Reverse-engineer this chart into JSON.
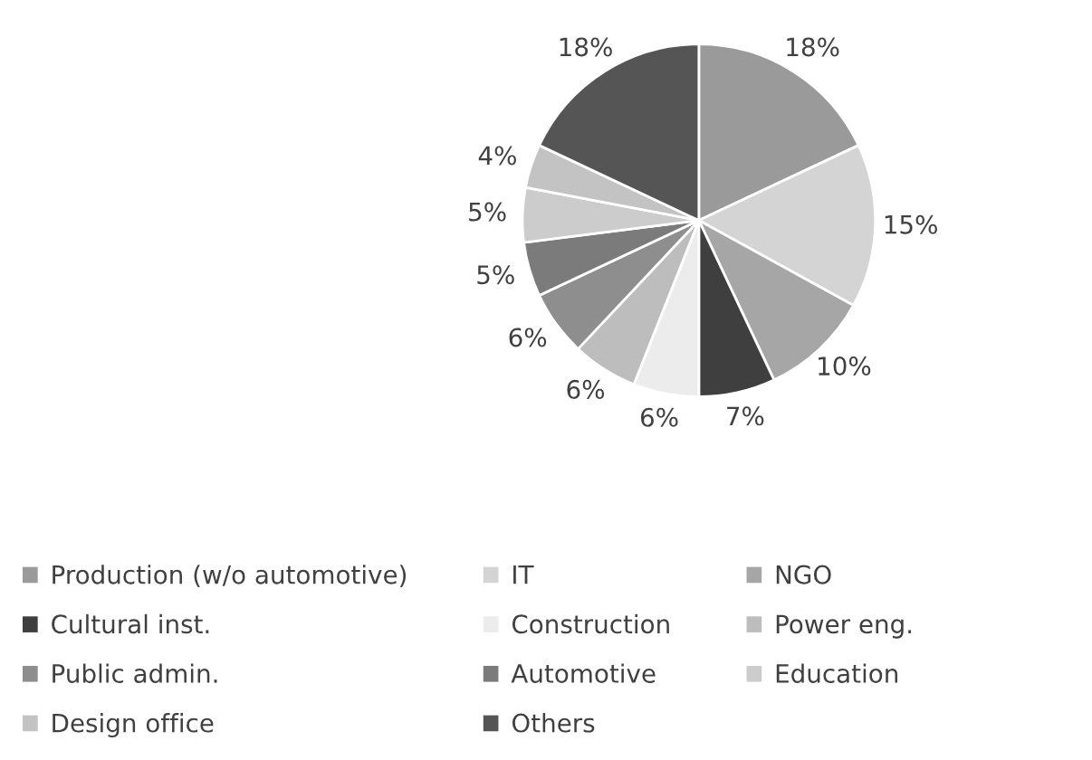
{
  "chart_data": {
    "type": "pie",
    "categories": [
      "Production (w/o automotive)",
      "IT",
      "NGO",
      "Cultural inst.",
      "Construction",
      "Power eng.",
      "Public admin.",
      "Automotive",
      "Education",
      "Design office",
      "Others"
    ],
    "values": [
      18,
      15,
      10,
      7,
      6,
      6,
      6,
      5,
      5,
      4,
      18
    ],
    "colors": [
      "#9a9a9a",
      "#d4d4d4",
      "#a6a6a6",
      "#3f3f3f",
      "#ececec",
      "#bdbdbd",
      "#8e8e8e",
      "#7b7b7b",
      "#cccccc",
      "#c3c3c3",
      "#555555"
    ],
    "value_labels": [
      "18%",
      "15%",
      "10%",
      "7%",
      "6%",
      "6%",
      "6%",
      "5%",
      "5%",
      "4%",
      "18%"
    ],
    "legend": "bottom"
  }
}
